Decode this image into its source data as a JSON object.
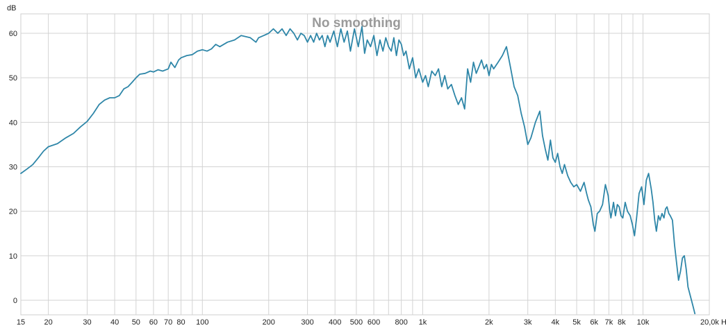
{
  "chart_data": {
    "type": "line",
    "title": "No smoothing",
    "ylabel": "dB",
    "x_unit": "Hz",
    "x_scale": "log",
    "xlim": [
      15,
      20000
    ],
    "ylim": [
      -3,
      65
    ],
    "grid": true,
    "line_color": "#2e86a8",
    "grid_color": "#d3d3d3",
    "y_ticks": [
      {
        "value": 0,
        "label": "0"
      },
      {
        "value": 10,
        "label": "10"
      },
      {
        "value": 20,
        "label": "20"
      },
      {
        "value": 30,
        "label": "30"
      },
      {
        "value": 40,
        "label": "40"
      },
      {
        "value": 50,
        "label": "50"
      },
      {
        "value": 60,
        "label": "60"
      }
    ],
    "x_ticks": [
      {
        "value": 15,
        "label": "15"
      },
      {
        "value": 20,
        "label": "20"
      },
      {
        "value": 30,
        "label": "30"
      },
      {
        "value": 40,
        "label": "40"
      },
      {
        "value": 50,
        "label": "50"
      },
      {
        "value": 60,
        "label": "60"
      },
      {
        "value": 70,
        "label": "70"
      },
      {
        "value": 80,
        "label": "80"
      },
      {
        "value": 100,
        "label": "100"
      },
      {
        "value": 200,
        "label": "200"
      },
      {
        "value": 300,
        "label": "300"
      },
      {
        "value": 400,
        "label": "400"
      },
      {
        "value": 500,
        "label": "500"
      },
      {
        "value": 600,
        "label": "600"
      },
      {
        "value": 800,
        "label": "800"
      },
      {
        "value": 1000,
        "label": "1k"
      },
      {
        "value": 2000,
        "label": "2k"
      },
      {
        "value": 3000,
        "label": "3k"
      },
      {
        "value": 4000,
        "label": "4k"
      },
      {
        "value": 5000,
        "label": "5k"
      },
      {
        "value": 6000,
        "label": "6k"
      },
      {
        "value": 7000,
        "label": "7k"
      },
      {
        "value": 8000,
        "label": "8k"
      },
      {
        "value": 10000,
        "label": "10k"
      },
      {
        "value": 20000,
        "label": "20,0k Hz"
      }
    ],
    "extra_gridlines_x": [
      90,
      700,
      900,
      9000
    ],
    "series": [
      {
        "points": [
          [
            15,
            28.5
          ],
          [
            16,
            29.5
          ],
          [
            17,
            30.5
          ],
          [
            18,
            32.0
          ],
          [
            19,
            33.5
          ],
          [
            20,
            34.5
          ],
          [
            22,
            35.2
          ],
          [
            24,
            36.5
          ],
          [
            26,
            37.5
          ],
          [
            28,
            39.0
          ],
          [
            30,
            40.2
          ],
          [
            32,
            42.0
          ],
          [
            34,
            44.0
          ],
          [
            36,
            45.0
          ],
          [
            38,
            45.5
          ],
          [
            40,
            45.5
          ],
          [
            42,
            46.0
          ],
          [
            44,
            47.5
          ],
          [
            46,
            48.0
          ],
          [
            48,
            49.0
          ],
          [
            50,
            50.0
          ],
          [
            52,
            50.8
          ],
          [
            55,
            51.0
          ],
          [
            58,
            51.5
          ],
          [
            60,
            51.3
          ],
          [
            63,
            51.8
          ],
          [
            66,
            51.5
          ],
          [
            70,
            52.0
          ],
          [
            72,
            53.5
          ],
          [
            75,
            52.3
          ],
          [
            78,
            54.0
          ],
          [
            80,
            54.5
          ],
          [
            85,
            55.0
          ],
          [
            90,
            55.2
          ],
          [
            95,
            56.0
          ],
          [
            100,
            56.3
          ],
          [
            105,
            56.0
          ],
          [
            110,
            56.5
          ],
          [
            115,
            57.5
          ],
          [
            120,
            57.0
          ],
          [
            130,
            58.0
          ],
          [
            140,
            58.5
          ],
          [
            150,
            59.5
          ],
          [
            165,
            59.0
          ],
          [
            175,
            58.0
          ],
          [
            180,
            59.0
          ],
          [
            190,
            59.5
          ],
          [
            200,
            60.0
          ],
          [
            210,
            61.0
          ],
          [
            220,
            60.0
          ],
          [
            230,
            61.0
          ],
          [
            240,
            59.5
          ],
          [
            250,
            61.0
          ],
          [
            260,
            60.0
          ],
          [
            270,
            58.5
          ],
          [
            280,
            60.0
          ],
          [
            290,
            59.5
          ],
          [
            300,
            58.0
          ],
          [
            310,
            59.5
          ],
          [
            320,
            58.0
          ],
          [
            330,
            60.0
          ],
          [
            340,
            58.5
          ],
          [
            350,
            59.5
          ],
          [
            360,
            57.0
          ],
          [
            370,
            59.5
          ],
          [
            380,
            58.0
          ],
          [
            395,
            60.5
          ],
          [
            410,
            57.0
          ],
          [
            425,
            61.0
          ],
          [
            440,
            58.0
          ],
          [
            455,
            60.5
          ],
          [
            470,
            56.0
          ],
          [
            490,
            61.0
          ],
          [
            510,
            57.0
          ],
          [
            530,
            61.5
          ],
          [
            545,
            55.5
          ],
          [
            560,
            58.5
          ],
          [
            580,
            57.0
          ],
          [
            600,
            59.5
          ],
          [
            620,
            55.0
          ],
          [
            640,
            58.5
          ],
          [
            660,
            56.0
          ],
          [
            680,
            59.0
          ],
          [
            700,
            57.0
          ],
          [
            720,
            56.0
          ],
          [
            740,
            59.0
          ],
          [
            760,
            55.0
          ],
          [
            780,
            58.5
          ],
          [
            800,
            57.5
          ],
          [
            820,
            55.0
          ],
          [
            840,
            56.0
          ],
          [
            870,
            52.0
          ],
          [
            900,
            54.5
          ],
          [
            930,
            50.0
          ],
          [
            960,
            52.0
          ],
          [
            1000,
            49.0
          ],
          [
            1030,
            50.5
          ],
          [
            1060,
            48.0
          ],
          [
            1100,
            51.5
          ],
          [
            1140,
            50.5
          ],
          [
            1180,
            52.0
          ],
          [
            1220,
            48.0
          ],
          [
            1260,
            50.5
          ],
          [
            1300,
            47.5
          ],
          [
            1350,
            48.5
          ],
          [
            1400,
            46.0
          ],
          [
            1450,
            44.0
          ],
          [
            1500,
            45.5
          ],
          [
            1550,
            43.0
          ],
          [
            1600,
            52.0
          ],
          [
            1650,
            49.0
          ],
          [
            1700,
            53.5
          ],
          [
            1750,
            51.0
          ],
          [
            1800,
            52.5
          ],
          [
            1850,
            54.0
          ],
          [
            1900,
            52.0
          ],
          [
            1950,
            53.0
          ],
          [
            2000,
            50.5
          ],
          [
            2050,
            53.0
          ],
          [
            2100,
            52.0
          ],
          [
            2200,
            53.5
          ],
          [
            2300,
            55.0
          ],
          [
            2400,
            57.0
          ],
          [
            2500,
            52.5
          ],
          [
            2600,
            48.0
          ],
          [
            2700,
            46.0
          ],
          [
            2800,
            42.0
          ],
          [
            2900,
            39.0
          ],
          [
            3000,
            35.0
          ],
          [
            3100,
            36.5
          ],
          [
            3250,
            40.0
          ],
          [
            3400,
            42.5
          ],
          [
            3500,
            37.0
          ],
          [
            3600,
            34.0
          ],
          [
            3700,
            31.5
          ],
          [
            3800,
            36.0
          ],
          [
            3900,
            32.0
          ],
          [
            4000,
            31.0
          ],
          [
            4100,
            33.0
          ],
          [
            4200,
            30.0
          ],
          [
            4300,
            28.5
          ],
          [
            4400,
            30.5
          ],
          [
            4550,
            28.0
          ],
          [
            4700,
            26.5
          ],
          [
            4850,
            25.5
          ],
          [
            5000,
            26.0
          ],
          [
            5200,
            24.5
          ],
          [
            5400,
            26.5
          ],
          [
            5550,
            24.0
          ],
          [
            5650,
            22.5
          ],
          [
            5800,
            21.0
          ],
          [
            5950,
            17.0
          ],
          [
            6050,
            15.5
          ],
          [
            6200,
            19.5
          ],
          [
            6350,
            20.0
          ],
          [
            6550,
            21.5
          ],
          [
            6750,
            26.0
          ],
          [
            6950,
            23.5
          ],
          [
            7050,
            20.5
          ],
          [
            7150,
            18.5
          ],
          [
            7350,
            22.0
          ],
          [
            7500,
            19.0
          ],
          [
            7650,
            21.5
          ],
          [
            7800,
            21.0
          ],
          [
            7950,
            19.0
          ],
          [
            8100,
            18.5
          ],
          [
            8300,
            22.0
          ],
          [
            8500,
            20.0
          ],
          [
            8750,
            19.0
          ],
          [
            8950,
            17.0
          ],
          [
            9150,
            14.5
          ],
          [
            9350,
            18.5
          ],
          [
            9600,
            24.0
          ],
          [
            9850,
            25.5
          ],
          [
            10100,
            21.5
          ],
          [
            10350,
            27.0
          ],
          [
            10600,
            28.5
          ],
          [
            10900,
            25.0
          ],
          [
            11100,
            22.0
          ],
          [
            11300,
            18.0
          ],
          [
            11500,
            15.5
          ],
          [
            11750,
            19.0
          ],
          [
            11950,
            18.0
          ],
          [
            12200,
            19.5
          ],
          [
            12450,
            18.5
          ],
          [
            12650,
            20.5
          ],
          [
            12850,
            21.0
          ],
          [
            13100,
            19.5
          ],
          [
            13300,
            19.0
          ],
          [
            13600,
            18.0
          ],
          [
            13900,
            12.5
          ],
          [
            14200,
            8.5
          ],
          [
            14500,
            4.5
          ],
          [
            14800,
            6.5
          ],
          [
            15100,
            9.5
          ],
          [
            15400,
            10.0
          ],
          [
            15700,
            7.0
          ],
          [
            16000,
            3.0
          ],
          [
            16300,
            1.5
          ],
          [
            16600,
            0.0
          ],
          [
            16900,
            -1.5
          ],
          [
            17200,
            -3.0
          ]
        ]
      }
    ]
  }
}
